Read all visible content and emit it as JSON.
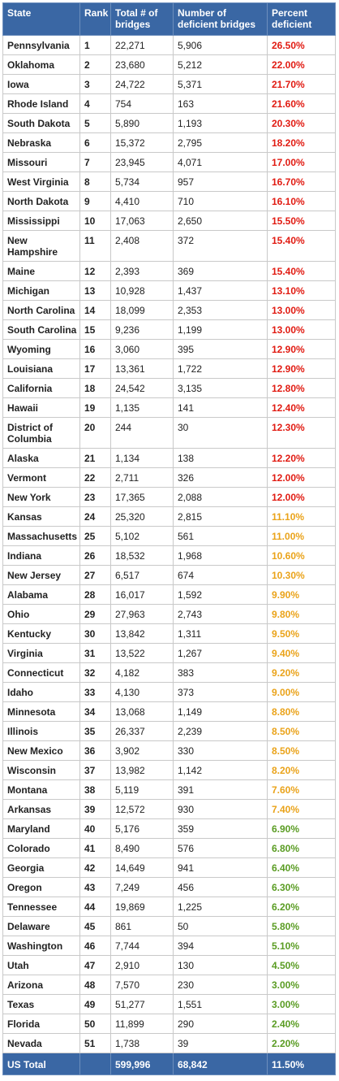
{
  "headers": [
    "State",
    "Rank",
    "Total # of bridges",
    "Number of deficient bridges",
    "Percent deficient"
  ],
  "colors": {
    "header_bg": "#3a67a4",
    "red": "#e11b12",
    "orange": "#eaa31a",
    "green": "#5a9c23"
  },
  "rows": [
    {
      "state": "Pennsylvania",
      "rank": "1",
      "total": "22,271",
      "deficient": "5,906",
      "percent": "26.50%",
      "level": "red"
    },
    {
      "state": "Oklahoma",
      "rank": "2",
      "total": "23,680",
      "deficient": "5,212",
      "percent": "22.00%",
      "level": "red"
    },
    {
      "state": "Iowa",
      "rank": "3",
      "total": "24,722",
      "deficient": "5,371",
      "percent": "21.70%",
      "level": "red"
    },
    {
      "state": "Rhode Island",
      "rank": "4",
      "total": "754",
      "deficient": "163",
      "percent": "21.60%",
      "level": "red"
    },
    {
      "state": "South Dakota",
      "rank": "5",
      "total": "5,890",
      "deficient": "1,193",
      "percent": "20.30%",
      "level": "red"
    },
    {
      "state": "Nebraska",
      "rank": "6",
      "total": "15,372",
      "deficient": "2,795",
      "percent": "18.20%",
      "level": "red"
    },
    {
      "state": "Missouri",
      "rank": "7",
      "total": "23,945",
      "deficient": "4,071",
      "percent": "17.00%",
      "level": "red"
    },
    {
      "state": "West Virginia",
      "rank": "8",
      "total": "5,734",
      "deficient": "957",
      "percent": "16.70%",
      "level": "red"
    },
    {
      "state": "North Dakota",
      "rank": "9",
      "total": "4,410",
      "deficient": "710",
      "percent": "16.10%",
      "level": "red"
    },
    {
      "state": "Mississippi",
      "rank": "10",
      "total": "17,063",
      "deficient": "2,650",
      "percent": "15.50%",
      "level": "red"
    },
    {
      "state": "New Hampshire",
      "rank": "11",
      "total": "2,408",
      "deficient": "372",
      "percent": "15.40%",
      "level": "red",
      "tall": true
    },
    {
      "state": "Maine",
      "rank": "12",
      "total": "2,393",
      "deficient": "369",
      "percent": "15.40%",
      "level": "red"
    },
    {
      "state": "Michigan",
      "rank": "13",
      "total": "10,928",
      "deficient": "1,437",
      "percent": "13.10%",
      "level": "red"
    },
    {
      "state": "North Carolina",
      "rank": "14",
      "total": "18,099",
      "deficient": "2,353",
      "percent": "13.00%",
      "level": "red"
    },
    {
      "state": "South Carolina",
      "rank": "15",
      "total": "9,236",
      "deficient": "1,199",
      "percent": "13.00%",
      "level": "red"
    },
    {
      "state": "Wyoming",
      "rank": "16",
      "total": "3,060",
      "deficient": "395",
      "percent": "12.90%",
      "level": "red"
    },
    {
      "state": "Louisiana",
      "rank": "17",
      "total": "13,361",
      "deficient": "1,722",
      "percent": "12.90%",
      "level": "red"
    },
    {
      "state": "California",
      "rank": "18",
      "total": "24,542",
      "deficient": "3,135",
      "percent": "12.80%",
      "level": "red"
    },
    {
      "state": "Hawaii",
      "rank": "19",
      "total": "1,135",
      "deficient": "141",
      "percent": "12.40%",
      "level": "red"
    },
    {
      "state": "District of Columbia",
      "rank": "20",
      "total": "244",
      "deficient": "30",
      "percent": "12.30%",
      "level": "red",
      "tall": true
    },
    {
      "state": "Alaska",
      "rank": "21",
      "total": "1,134",
      "deficient": "138",
      "percent": "12.20%",
      "level": "red"
    },
    {
      "state": "Vermont",
      "rank": "22",
      "total": "2,711",
      "deficient": "326",
      "percent": "12.00%",
      "level": "red"
    },
    {
      "state": "New York",
      "rank": "23",
      "total": "17,365",
      "deficient": "2,088",
      "percent": "12.00%",
      "level": "red"
    },
    {
      "state": "Kansas",
      "rank": "24",
      "total": "25,320",
      "deficient": "2,815",
      "percent": "11.10%",
      "level": "orange"
    },
    {
      "state": "Massachusetts",
      "rank": "25",
      "total": "5,102",
      "deficient": "561",
      "percent": "11.00%",
      "level": "orange"
    },
    {
      "state": "Indiana",
      "rank": "26",
      "total": "18,532",
      "deficient": "1,968",
      "percent": "10.60%",
      "level": "orange"
    },
    {
      "state": "New Jersey",
      "rank": "27",
      "total": "6,517",
      "deficient": "674",
      "percent": "10.30%",
      "level": "orange"
    },
    {
      "state": "Alabama",
      "rank": "28",
      "total": "16,017",
      "deficient": "1,592",
      "percent": "9.90%",
      "level": "orange"
    },
    {
      "state": "Ohio",
      "rank": "29",
      "total": "27,963",
      "deficient": "2,743",
      "percent": "9.80%",
      "level": "orange"
    },
    {
      "state": "Kentucky",
      "rank": "30",
      "total": "13,842",
      "deficient": "1,311",
      "percent": "9.50%",
      "level": "orange"
    },
    {
      "state": "Virginia",
      "rank": "31",
      "total": "13,522",
      "deficient": "1,267",
      "percent": "9.40%",
      "level": "orange"
    },
    {
      "state": "Connecticut",
      "rank": "32",
      "total": "4,182",
      "deficient": "383",
      "percent": "9.20%",
      "level": "orange"
    },
    {
      "state": "Idaho",
      "rank": "33",
      "total": "4,130",
      "deficient": "373",
      "percent": "9.00%",
      "level": "orange"
    },
    {
      "state": "Minnesota",
      "rank": "34",
      "total": "13,068",
      "deficient": "1,149",
      "percent": "8.80%",
      "level": "orange"
    },
    {
      "state": "Illinois",
      "rank": "35",
      "total": "26,337",
      "deficient": "2,239",
      "percent": "8.50%",
      "level": "orange"
    },
    {
      "state": "New Mexico",
      "rank": "36",
      "total": "3,902",
      "deficient": "330",
      "percent": "8.50%",
      "level": "orange"
    },
    {
      "state": "Wisconsin",
      "rank": "37",
      "total": "13,982",
      "deficient": "1,142",
      "percent": "8.20%",
      "level": "orange"
    },
    {
      "state": "Montana",
      "rank": "38",
      "total": "5,119",
      "deficient": "391",
      "percent": "7.60%",
      "level": "orange"
    },
    {
      "state": "Arkansas",
      "rank": "39",
      "total": "12,572",
      "deficient": "930",
      "percent": "7.40%",
      "level": "orange"
    },
    {
      "state": "Maryland",
      "rank": "40",
      "total": "5,176",
      "deficient": "359",
      "percent": "6.90%",
      "level": "green"
    },
    {
      "state": "Colorado",
      "rank": "41",
      "total": "8,490",
      "deficient": "576",
      "percent": "6.80%",
      "level": "green"
    },
    {
      "state": "Georgia",
      "rank": "42",
      "total": "14,649",
      "deficient": "941",
      "percent": "6.40%",
      "level": "green"
    },
    {
      "state": "Oregon",
      "rank": "43",
      "total": "7,249",
      "deficient": "456",
      "percent": "6.30%",
      "level": "green"
    },
    {
      "state": "Tennessee",
      "rank": "44",
      "total": "19,869",
      "deficient": "1,225",
      "percent": "6.20%",
      "level": "green"
    },
    {
      "state": "Delaware",
      "rank": "45",
      "total": "861",
      "deficient": "50",
      "percent": "5.80%",
      "level": "green"
    },
    {
      "state": "Washington",
      "rank": "46",
      "total": "7,744",
      "deficient": "394",
      "percent": "5.10%",
      "level": "green"
    },
    {
      "state": "Utah",
      "rank": "47",
      "total": "2,910",
      "deficient": "130",
      "percent": "4.50%",
      "level": "green"
    },
    {
      "state": "Arizona",
      "rank": "48",
      "total": "7,570",
      "deficient": "230",
      "percent": "3.00%",
      "level": "green"
    },
    {
      "state": "Texas",
      "rank": "49",
      "total": "51,277",
      "deficient": "1,551",
      "percent": "3.00%",
      "level": "green"
    },
    {
      "state": "Florida",
      "rank": "50",
      "total": "11,899",
      "deficient": "290",
      "percent": "2.40%",
      "level": "green"
    },
    {
      "state": "Nevada",
      "rank": "51",
      "total": "1,738",
      "deficient": "39",
      "percent": "2.20%",
      "level": "green"
    }
  ],
  "total": {
    "label": "US Total",
    "total": "599,996",
    "deficient": "68,842",
    "percent": "11.50%"
  }
}
